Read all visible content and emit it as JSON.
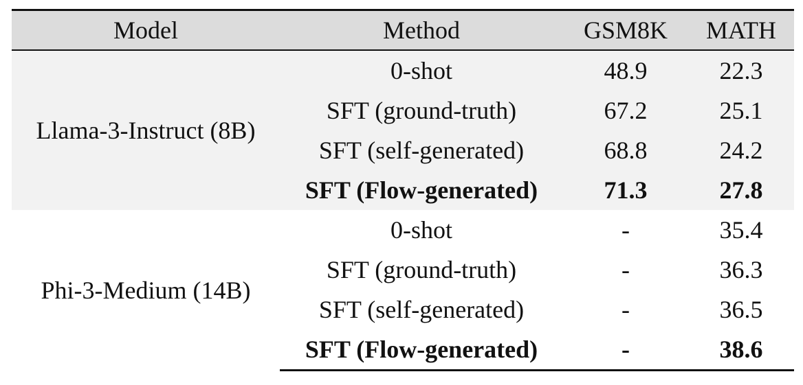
{
  "table": {
    "headers": [
      "Model",
      "Method",
      "GSM8K",
      "MATH"
    ],
    "groups": [
      {
        "model": "Llama-3-Instruct (8B)",
        "rows": [
          {
            "method": "0-shot",
            "gsm8k": "48.9",
            "math": "22.3",
            "bold": false
          },
          {
            "method": "SFT (ground-truth)",
            "gsm8k": "67.2",
            "math": "25.1",
            "bold": false
          },
          {
            "method": "SFT (self-generated)",
            "gsm8k": "68.8",
            "math": "24.2",
            "bold": false
          },
          {
            "method": "SFT (Flow-generated)",
            "gsm8k": "71.3",
            "math": "27.8",
            "bold": true
          }
        ]
      },
      {
        "model": "Phi-3-Medium (14B)",
        "rows": [
          {
            "method": "0-shot",
            "gsm8k": "-",
            "math": "35.4",
            "bold": false
          },
          {
            "method": "SFT (ground-truth)",
            "gsm8k": "-",
            "math": "36.3",
            "bold": false
          },
          {
            "method": "SFT (self-generated)",
            "gsm8k": "-",
            "math": "36.5",
            "bold": false
          },
          {
            "method": "SFT (Flow-generated)",
            "gsm8k": "-",
            "math": "38.6",
            "bold": true
          }
        ]
      }
    ],
    "colors": {
      "header_bg": "#dcdcdc",
      "group1_bg": "#f2f2f2",
      "group2_bg": "#ffffff",
      "rule": "#111111"
    }
  }
}
